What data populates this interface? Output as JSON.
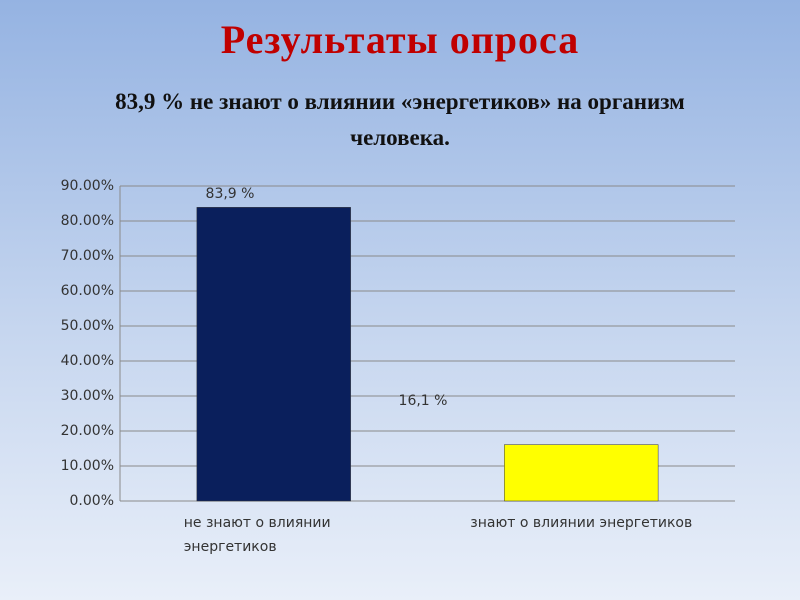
{
  "chart_data": {
    "type": "bar",
    "title": "Результаты опроса",
    "subtitle": "83,9 % не знают о влиянии «энергетиков» на организм человека.",
    "categories": [
      "не знают о влиянии энергетиков",
      "знают о влиянии энергетиков"
    ],
    "values": [
      83.9,
      16.1
    ],
    "value_labels": [
      "83,9 %",
      "16,1 %"
    ],
    "colors": [
      "#0a1f5c",
      "#ffff00"
    ],
    "ylim": [
      0,
      90
    ],
    "yticks": [
      {
        "value": 0,
        "label": "0.00%"
      },
      {
        "value": 10,
        "label": "10.00%"
      },
      {
        "value": 20,
        "label": "20.00%"
      },
      {
        "value": 30,
        "label": "30.00%"
      },
      {
        "value": 40,
        "label": "40.00%"
      },
      {
        "value": 50,
        "label": "50.00%"
      },
      {
        "value": 60,
        "label": "60.00%"
      },
      {
        "value": 70,
        "label": "70.00%"
      },
      {
        "value": 80,
        "label": "80.00%"
      },
      {
        "value": 90,
        "label": "90.00%"
      }
    ],
    "grid": true
  }
}
